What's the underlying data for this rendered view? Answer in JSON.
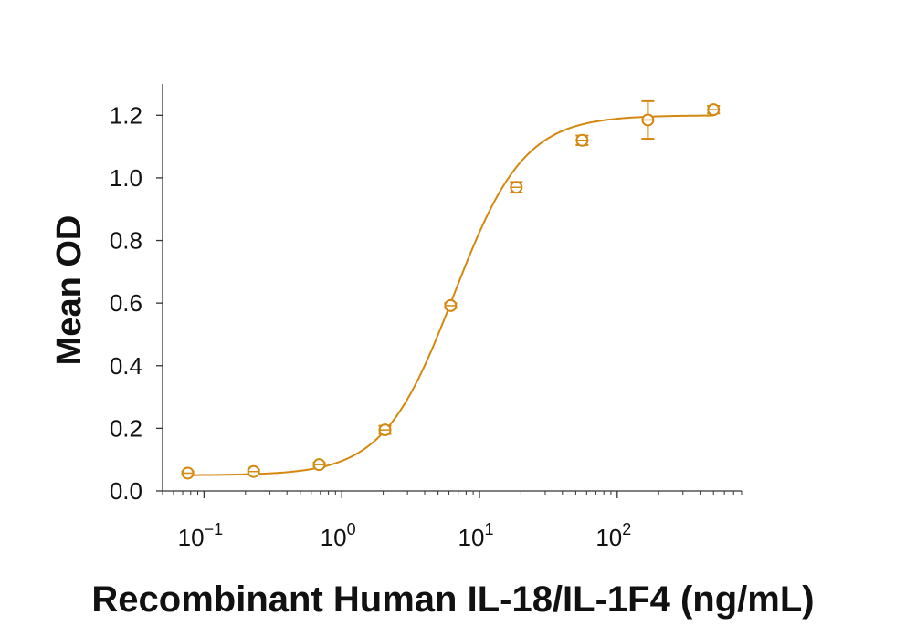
{
  "chart_data": {
    "type": "scatter",
    "xlabel": "Recombinant Human IL-18/IL-1F4 (ng/mL)",
    "ylabel": "Mean OD",
    "x_scale": "log",
    "xlim": [
      0.05,
      800
    ],
    "ylim": [
      0.0,
      1.3
    ],
    "y_ticks": [
      "0.0",
      "0.2",
      "0.4",
      "0.6",
      "0.8",
      "1.0",
      "1.2"
    ],
    "x_ticks": [
      {
        "base": "10",
        "exp": "−1",
        "value": 0.1
      },
      {
        "base": "10",
        "exp": "0",
        "value": 1
      },
      {
        "base": "10",
        "exp": "1",
        "value": 10
      },
      {
        "base": "10",
        "exp": "2",
        "value": 100
      }
    ],
    "grid": false,
    "color": "#D4880F",
    "series": [
      {
        "points": [
          {
            "x": 0.0762,
            "y": 0.057,
            "err": 0.005
          },
          {
            "x": 0.229,
            "y": 0.062,
            "err": 0.006
          },
          {
            "x": 0.686,
            "y": 0.084,
            "err": 0.006
          },
          {
            "x": 2.06,
            "y": 0.195,
            "err": 0.013
          },
          {
            "x": 6.17,
            "y": 0.592,
            "err": 0.008
          },
          {
            "x": 18.5,
            "y": 0.97,
            "err": 0.017
          },
          {
            "x": 55.6,
            "y": 1.12,
            "err": 0.015
          },
          {
            "x": 167,
            "y": 1.185,
            "err": 0.06
          },
          {
            "x": 500,
            "y": 1.218,
            "err": 0.012
          }
        ],
        "fit": {
          "model": "4PL",
          "bottom": 0.05,
          "top": 1.2,
          "ec50": 6.5,
          "hill": 1.7
        }
      }
    ]
  }
}
